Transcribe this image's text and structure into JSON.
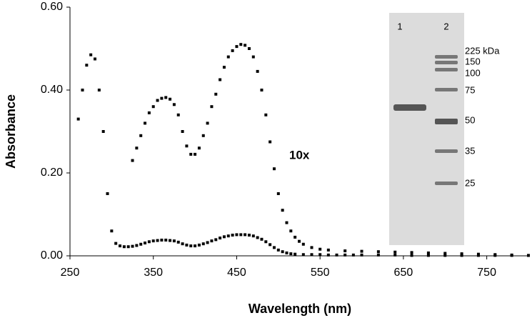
{
  "chart_data": {
    "type": "scatter",
    "x_label": "Wavelength (nm)",
    "y_label": "Absorbance",
    "xlim": [
      250,
      800
    ],
    "xticks": [
      250,
      350,
      450,
      550,
      650,
      750
    ],
    "ylim": [
      0,
      0.6
    ],
    "yticks": [
      {
        "value": 0,
        "label": "0.00"
      },
      {
        "value": 0.2,
        "label": "0.20"
      },
      {
        "value": 0.4,
        "label": "0.40"
      },
      {
        "value": 0.6,
        "label": "0.60"
      }
    ],
    "annotation": "10x",
    "series": [
      {
        "color": "#000000",
        "x": [
          260,
          265,
          270,
          275,
          280,
          285,
          290,
          295,
          300,
          305,
          310,
          315,
          320,
          325,
          330,
          335,
          340,
          345,
          350,
          355,
          360,
          365,
          370,
          375,
          380,
          385,
          390,
          395,
          400,
          405,
          410,
          415,
          420,
          425,
          430,
          435,
          440,
          445,
          450,
          455,
          460,
          465,
          470,
          475,
          480,
          485,
          490,
          495,
          500,
          505,
          510,
          515,
          520,
          530,
          540,
          550,
          560,
          570,
          580,
          590,
          600,
          620,
          640,
          660,
          680,
          700,
          720,
          740,
          760,
          780,
          800
        ],
        "values": [
          0.33,
          0.4,
          0.46,
          0.485,
          0.475,
          0.4,
          0.3,
          0.15,
          0.06,
          0.03,
          0.024,
          0.022,
          0.022,
          0.023,
          0.025,
          0.028,
          0.031,
          0.034,
          0.036,
          0.037,
          0.038,
          0.038,
          0.037,
          0.036,
          0.033,
          0.029,
          0.026,
          0.024,
          0.024,
          0.026,
          0.029,
          0.032,
          0.036,
          0.039,
          0.043,
          0.046,
          0.048,
          0.05,
          0.051,
          0.051,
          0.051,
          0.05,
          0.048,
          0.044,
          0.04,
          0.034,
          0.027,
          0.02,
          0.014,
          0.01,
          0.007,
          0.005,
          0.004,
          0.003,
          0.003,
          0.003,
          0.002,
          0.002,
          0.002,
          0.002,
          0.002,
          0.002,
          0.002,
          0.001,
          0.001,
          0.001,
          0.001,
          0.001,
          0.001,
          0.001,
          0.001
        ]
      },
      {
        "color": "#000000",
        "x": [
          325,
          330,
          335,
          340,
          345,
          350,
          355,
          360,
          365,
          370,
          375,
          380,
          385,
          390,
          395,
          400,
          405,
          410,
          415,
          420,
          425,
          430,
          435,
          440,
          445,
          450,
          455,
          460,
          465,
          470,
          475,
          480,
          485,
          490,
          495,
          500,
          505,
          510,
          515,
          520,
          525,
          530,
          540,
          550,
          560,
          580,
          600,
          620,
          640,
          660,
          680,
          700,
          720,
          740,
          760,
          780,
          800
        ],
        "values": [
          0.23,
          0.26,
          0.29,
          0.32,
          0.345,
          0.36,
          0.375,
          0.38,
          0.382,
          0.378,
          0.365,
          0.34,
          0.3,
          0.265,
          0.245,
          0.245,
          0.26,
          0.29,
          0.32,
          0.36,
          0.39,
          0.425,
          0.455,
          0.48,
          0.495,
          0.505,
          0.51,
          0.508,
          0.5,
          0.48,
          0.445,
          0.4,
          0.34,
          0.275,
          0.21,
          0.15,
          0.11,
          0.08,
          0.06,
          0.045,
          0.035,
          0.028,
          0.02,
          0.016,
          0.014,
          0.012,
          0.011,
          0.01,
          0.009,
          0.008,
          0.007,
          0.006,
          0.005,
          0.004,
          0.003,
          0.002,
          0.001
        ]
      }
    ],
    "inset": {
      "lanes": [
        "1",
        "2"
      ],
      "markers": [
        "225 kDa",
        "150",
        "100",
        "75",
        "50",
        "35",
        "25"
      ]
    }
  }
}
